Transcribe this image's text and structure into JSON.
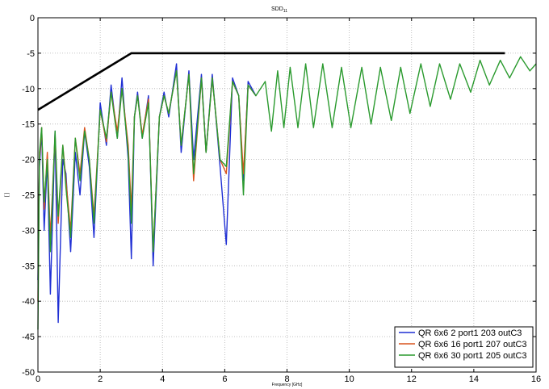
{
  "chart_data": {
    "type": "line",
    "title": "SDD",
    "title_subscript": "11",
    "xlabel": "Frequency [GHz]",
    "ylabel": "[ ]",
    "xlim": [
      0,
      16
    ],
    "ylim": [
      -50,
      0
    ],
    "xticks": [
      0,
      2,
      4,
      6,
      8,
      10,
      12,
      14,
      16
    ],
    "yticks": [
      0,
      -5,
      -10,
      -15,
      -20,
      -25,
      -30,
      -35,
      -40,
      -45,
      -50
    ],
    "grid": true,
    "legend_position": "bottom-right",
    "mask": {
      "name": "",
      "color": "#000000",
      "x": [
        0,
        3,
        15
      ],
      "y": [
        -13,
        -5,
        -5
      ]
    },
    "series": [
      {
        "name": "QR 6x6 2 port1 203 outC3",
        "color": "#1f2fd4",
        "x": [
          0.0,
          0.05,
          0.12,
          0.2,
          0.3,
          0.4,
          0.55,
          0.65,
          0.8,
          0.9,
          1.05,
          1.2,
          1.35,
          1.5,
          1.65,
          1.8,
          2.0,
          2.2,
          2.35,
          2.55,
          2.7,
          2.9,
          3.0,
          3.1,
          3.2,
          3.35,
          3.55,
          3.7,
          3.9,
          4.05,
          4.2,
          4.45,
          4.6,
          4.85,
          5.0,
          5.25,
          5.4,
          5.6,
          5.85,
          6.05,
          6.25,
          6.45,
          6.6,
          6.75,
          7.0
        ],
        "y": [
          -37,
          -21,
          -16,
          -30,
          -20,
          -39,
          -16,
          -43,
          -20,
          -22,
          -33,
          -19,
          -25,
          -16,
          -21,
          -31,
          -12,
          -18,
          -9.5,
          -17,
          -8.5,
          -20,
          -34,
          -14,
          -10.5,
          -17,
          -11,
          -35,
          -14,
          -10.5,
          -14,
          -6.5,
          -19,
          -7.5,
          -20,
          -8,
          -19,
          -8,
          -21,
          -32,
          -8.5,
          -11,
          -23,
          -9,
          -11
        ]
      },
      {
        "name": "QR 6x6 16 port1 207 outC3",
        "color": "#d9541e",
        "x": [
          0.0,
          0.05,
          0.12,
          0.2,
          0.3,
          0.4,
          0.55,
          0.65,
          0.8,
          0.9,
          1.05,
          1.2,
          1.35,
          1.5,
          1.65,
          1.8,
          2.0,
          2.2,
          2.35,
          2.55,
          2.7,
          2.9,
          3.0,
          3.1,
          3.2,
          3.35,
          3.55,
          3.7,
          3.9,
          4.05,
          4.2,
          4.45,
          4.6,
          4.85,
          5.0,
          5.25,
          5.4,
          5.6,
          5.85,
          6.05,
          6.25,
          6.45,
          6.6,
          6.75,
          7.0
        ],
        "y": [
          -40,
          -20,
          -15.5,
          -27,
          -19,
          -31,
          -16.5,
          -29,
          -18,
          -23,
          -30,
          -17,
          -22,
          -15.5,
          -20,
          -28,
          -13,
          -17.5,
          -10.5,
          -16,
          -10,
          -18,
          -27,
          -14,
          -11,
          -16.5,
          -11.5,
          -33,
          -14,
          -11,
          -13.5,
          -7.5,
          -18,
          -8,
          -23,
          -8.5,
          -19,
          -8.5,
          -20,
          -22,
          -9,
          -11,
          -22,
          -9.5,
          -11
        ]
      },
      {
        "name": "QR 6x6 30 port1 205 outC3",
        "color": "#2a9a2e",
        "x": [
          0.0,
          0.05,
          0.12,
          0.2,
          0.3,
          0.4,
          0.55,
          0.65,
          0.8,
          0.9,
          1.05,
          1.2,
          1.35,
          1.5,
          1.65,
          1.8,
          2.0,
          2.2,
          2.35,
          2.55,
          2.7,
          2.9,
          3.0,
          3.1,
          3.2,
          3.35,
          3.55,
          3.7,
          3.9,
          4.05,
          4.2,
          4.45,
          4.6,
          4.85,
          5.0,
          5.25,
          5.4,
          5.6,
          5.85,
          6.05,
          6.25,
          6.45,
          6.6,
          6.75,
          7.0,
          7.3,
          7.5,
          7.7,
          7.9,
          8.1,
          8.35,
          8.6,
          8.85,
          9.15,
          9.45,
          9.75,
          10.05,
          10.4,
          10.7,
          11.0,
          11.35,
          11.65,
          11.95,
          12.3,
          12.6,
          12.9,
          13.25,
          13.55,
          13.9,
          14.2,
          14.5,
          14.85,
          15.15,
          15.5,
          15.8,
          16.0
        ],
        "y": [
          -44,
          -19,
          -15.5,
          -26,
          -20,
          -33,
          -16,
          -28,
          -18,
          -24,
          -31,
          -17,
          -23,
          -16,
          -20,
          -29,
          -13,
          -17,
          -10.5,
          -17,
          -10,
          -19,
          -29,
          -14,
          -11,
          -17,
          -12,
          -33,
          -14,
          -11,
          -13.5,
          -7.5,
          -18,
          -8,
          -22,
          -8.5,
          -19,
          -8.5,
          -20,
          -21,
          -9,
          -11,
          -25,
          -9.5,
          -11,
          -9,
          -16,
          -7.5,
          -15.5,
          -7,
          -15.5,
          -6.5,
          -15.5,
          -6.5,
          -15.5,
          -7,
          -15.5,
          -7,
          -15,
          -7,
          -14.5,
          -7,
          -13.5,
          -6.5,
          -12.5,
          -6.5,
          -11.5,
          -6.5,
          -10.5,
          -6,
          -9.5,
          -6,
          -8.5,
          -5.5,
          -7.5,
          -6.5
        ]
      }
    ]
  }
}
